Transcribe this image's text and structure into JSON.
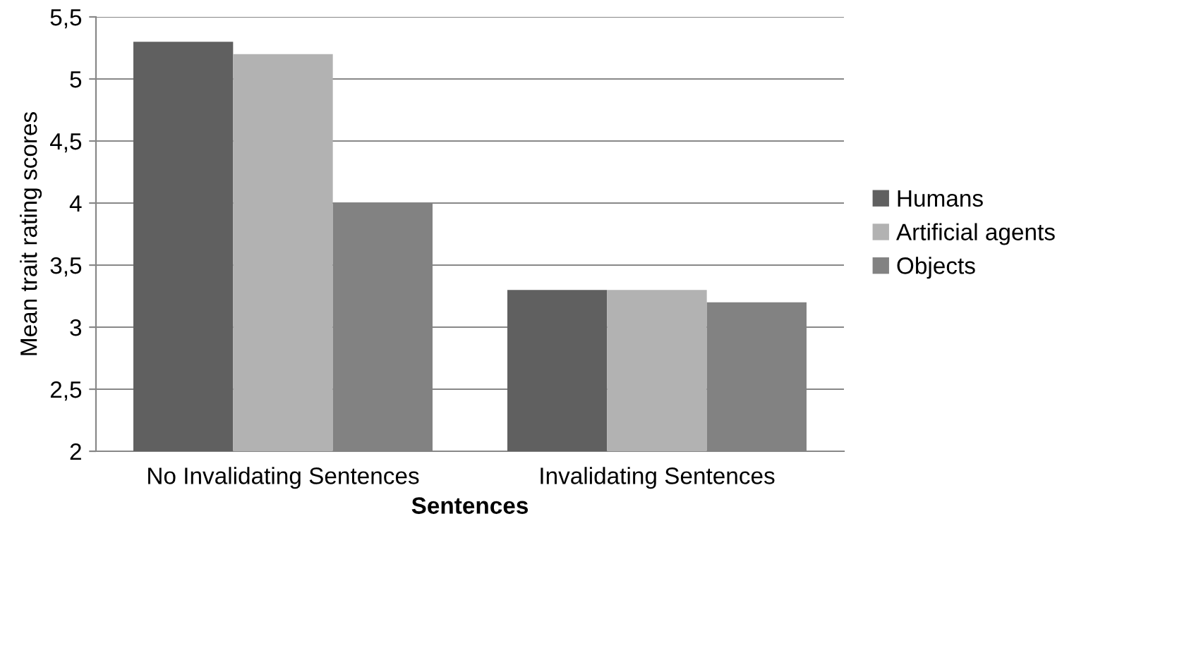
{
  "chart_data": {
    "type": "bar",
    "xlabel": "Sentences",
    "ylabel": "Mean trait rating scores",
    "categories": [
      "No Invalidating Sentences",
      "Invalidating Sentences"
    ],
    "series": [
      {
        "name": "Humans",
        "color": "#606060",
        "values": [
          5.3,
          3.3
        ]
      },
      {
        "name": "Artificial agents",
        "color": "#b2b2b2",
        "values": [
          5.2,
          3.3
        ]
      },
      {
        "name": "Objects",
        "color": "#828282",
        "values": [
          4.0,
          3.2
        ]
      }
    ],
    "ylim": [
      2,
      5.5
    ],
    "yticks": [
      2,
      {
        "value": 2.5,
        "label": "2,5"
      },
      3,
      {
        "value": 3.5,
        "label": "3,5"
      },
      4,
      {
        "value": 4.5,
        "label": "4,5"
      },
      5,
      {
        "value": 5.5,
        "label": "5,5"
      }
    ],
    "grid": "y",
    "legend": "right"
  }
}
